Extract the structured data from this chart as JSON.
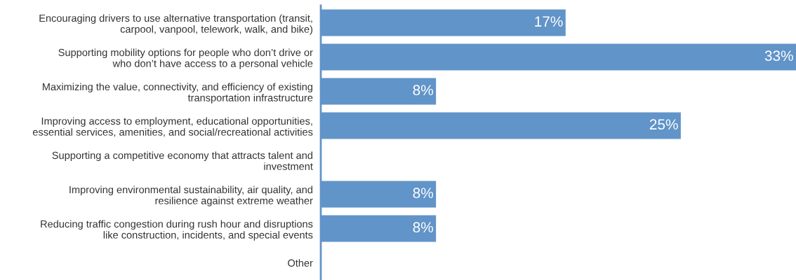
{
  "chart_data": {
    "type": "bar",
    "orientation": "horizontal",
    "categories": [
      "Encouraging drivers to use alternative transportation (transit,\ncarpool, vanpool, telework, walk, and bike)",
      "Supporting mobility options for people who don’t drive or\nwho don’t have access to a personal vehicle",
      "Maximizing the value, connectivity, and efficiency of existing\ntransportation infrastructure",
      "Improving access to employment, educational opportunities,\nessential services, amenities, and social/recreational activities",
      "Supporting a competitive economy that attracts talent and\ninvestment",
      "Improving environmental sustainability, air quality, and\nresilience against extreme weather",
      "Reducing traffic congestion during rush hour and disruptions\nlike construction, incidents, and special events",
      "Other"
    ],
    "values": [
      17,
      33,
      8,
      25,
      0,
      8,
      8,
      0
    ],
    "value_labels": [
      "17%",
      "33%",
      "8%",
      "25%",
      null,
      "8%",
      "8%",
      null
    ],
    "color": "#6194c8",
    "xlim": [
      0,
      33
    ],
    "tick_labels": "y",
    "grid": false,
    "legend": false
  }
}
